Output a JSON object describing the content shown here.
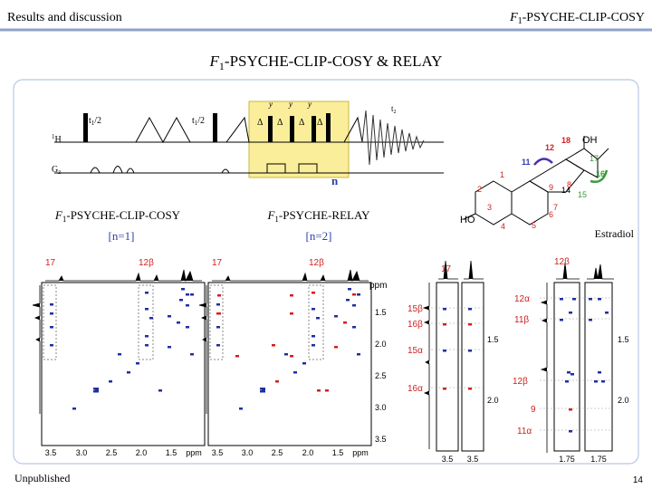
{
  "header": {
    "section": "Results and discussion",
    "topic": {
      "f": "F",
      "sub": "1",
      "rest": "-PSYCHE-CLIP-COSY"
    }
  },
  "title": {
    "f": "F",
    "sub": "1",
    "rest": "-PSYCHE-CLIP-COSY & RELAY"
  },
  "pulse_sequence": {
    "delay_left": {
      "t": "t",
      "sub": "1",
      "rest": "/2"
    },
    "delay_right": {
      "t": "t",
      "sub": "1",
      "rest": "/2"
    },
    "proton": {
      "sup": "1",
      "rest": "H"
    },
    "gradient": {
      "g": "G",
      "sub": "z"
    },
    "acquisition": {
      "t": "t",
      "sub": "2"
    },
    "phases": [
      "y",
      "y",
      "y"
    ],
    "deltas": [
      "Δ",
      "Δ",
      "Δ",
      "Δ"
    ],
    "loop": "n"
  },
  "molecule": {
    "name": "Estradiol",
    "groups": [
      "HO",
      "OH"
    ],
    "atoms": [
      "1",
      "2",
      "3",
      "4",
      "5",
      "6",
      "7",
      "8",
      "9",
      "11",
      "12",
      "14",
      "15",
      "16",
      "17",
      "18"
    ]
  },
  "panels": [
    {
      "title": {
        "f": "F",
        "sub": "1",
        "rest": "-PSYCHE-CLIP-COSY"
      },
      "condition": "[n=1]"
    },
    {
      "title": {
        "f": "F",
        "sub": "1",
        "rest": "-PSYCHE-RELAY"
      },
      "condition": "[n=2]"
    }
  ],
  "spectra": [
    {
      "peaks": [
        "17",
        "12β"
      ],
      "x_ticks": [
        "3.5",
        "3.0",
        "2.5",
        "2.0",
        "1.5"
      ],
      "x_unit": "ppm"
    },
    {
      "peaks": [
        "17",
        "12β"
      ],
      "x_ticks": [
        "3.5",
        "3.0",
        "2.5",
        "2.0",
        "1.5"
      ],
      "x_unit": "ppm",
      "y_unit": "ppm",
      "y_ticks": [
        "1.5",
        "2.0",
        "2.5",
        "3.0",
        "3.5"
      ]
    },
    {
      "peaks": [
        "17"
      ],
      "assignments": [
        "15β",
        "16β",
        "15α",
        "16α"
      ],
      "y_ticks": [
        "1.5",
        "2.0"
      ],
      "x_ticks": [
        "3.5",
        "3.5"
      ]
    },
    {
      "peaks": [
        "12β"
      ],
      "assignments": [
        "12α",
        "11β",
        "12β",
        "9",
        "11α"
      ],
      "y_ticks": [
        "1.5",
        "2.0"
      ],
      "x_ticks": [
        "1.75",
        "1.75"
      ]
    }
  ],
  "footer": {
    "note": "Unpublished",
    "page": "14"
  }
}
